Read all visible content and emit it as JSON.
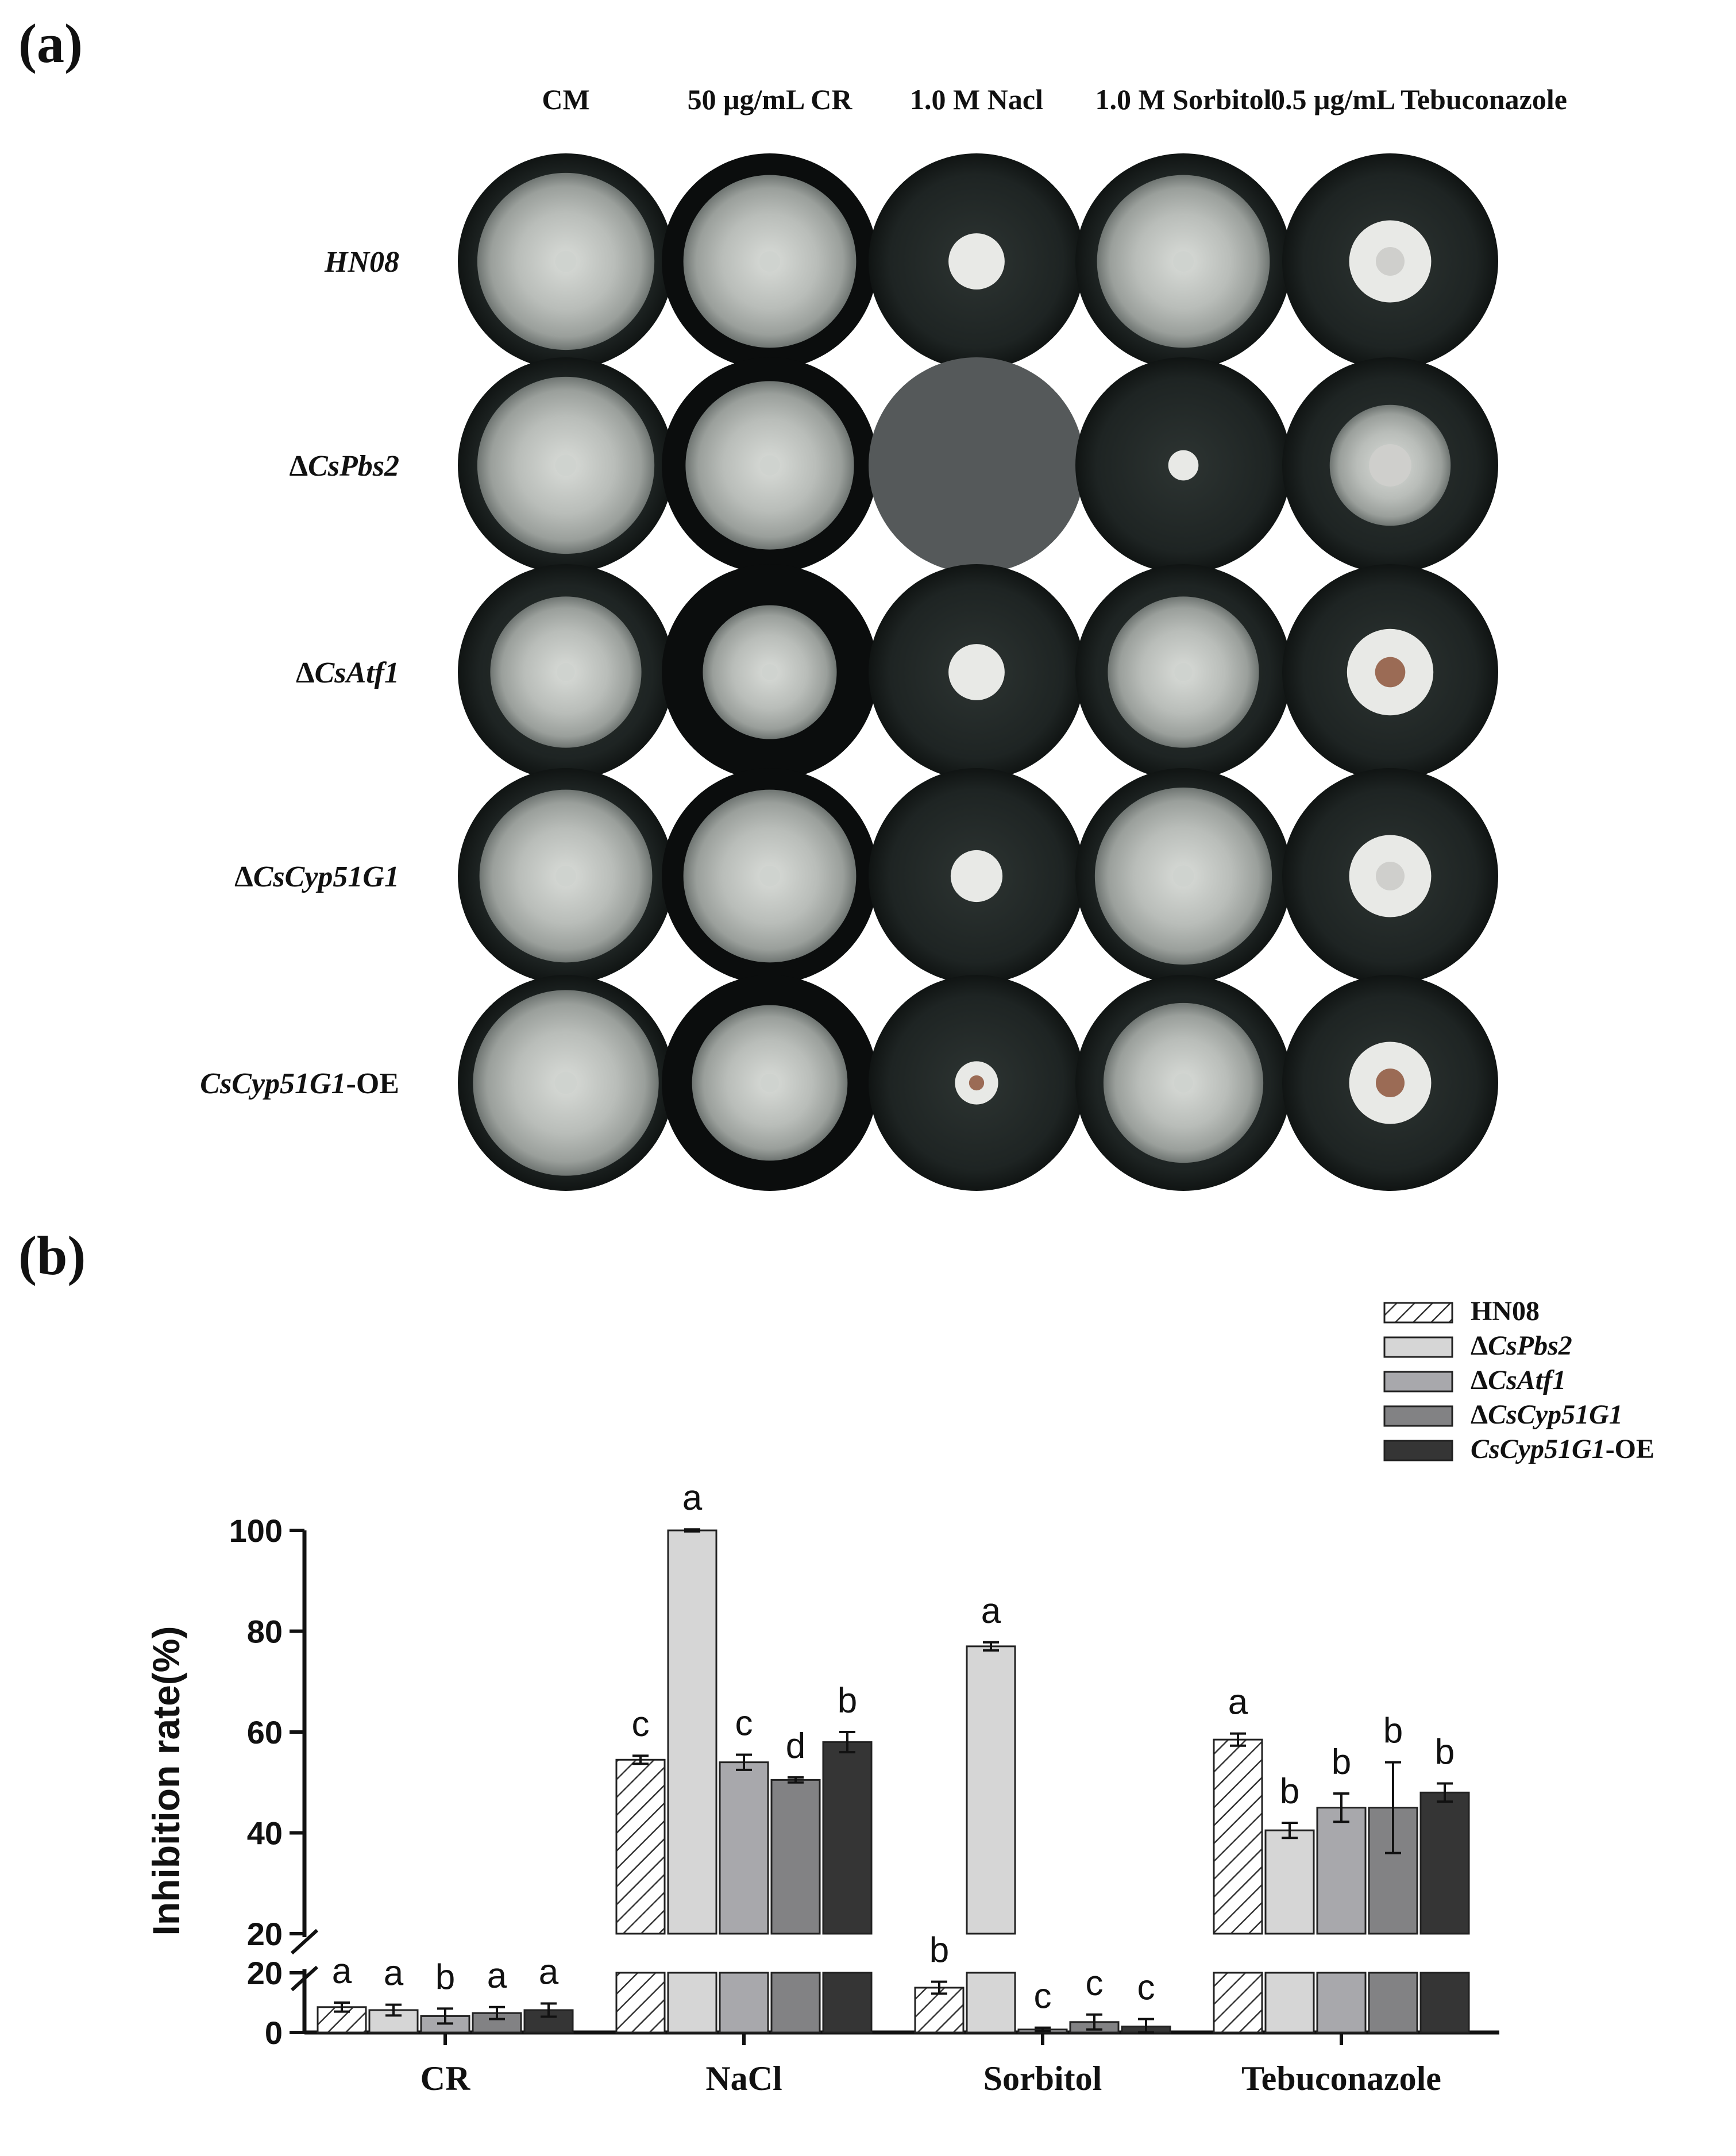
{
  "panel_a": {
    "label": "(a)",
    "columns": [
      "CM",
      "50 μg/mL CR",
      "1.0 M Nacl",
      "1.0 M Sorbitol",
      "0.5 μg/mL Tebuconazole"
    ],
    "rows": [
      {
        "prefix": "",
        "name": "HN08",
        "suffix": ""
      },
      {
        "prefix": "Δ",
        "name": "CsPbs2",
        "suffix": ""
      },
      {
        "prefix": "Δ",
        "name": "CsAtf1",
        "suffix": ""
      },
      {
        "prefix": "Δ",
        "name": "CsCyp51G1",
        "suffix": ""
      },
      {
        "prefix": "",
        "name": "CsCyp51G1",
        "suffix": "-OE"
      }
    ],
    "colony_fraction": [
      [
        0.82,
        0.8,
        0.26,
        0.8,
        0.38
      ],
      [
        0.82,
        0.78,
        0.0,
        0.14,
        0.56
      ],
      [
        0.7,
        0.62,
        0.26,
        0.7,
        0.4
      ],
      [
        0.8,
        0.8,
        0.24,
        0.82,
        0.38
      ],
      [
        0.86,
        0.72,
        0.2,
        0.74,
        0.38
      ]
    ]
  },
  "panel_b": {
    "label": "(b)"
  },
  "chart_data": {
    "type": "bar",
    "ylabel": "Inhibition rate(%)",
    "categories": [
      "CR",
      "NaCl",
      "Sorbitol",
      "Tebuconazole"
    ],
    "y_axis_break": {
      "lower_range": [
        0,
        20
      ],
      "upper_range": [
        20,
        100
      ]
    },
    "upper_ticks": [
      20,
      40,
      60,
      80,
      100
    ],
    "lower_ticks": [
      0,
      20
    ],
    "legend_position": "top-right",
    "series": [
      {
        "name": "HN08",
        "prefix": "",
        "italic": "",
        "suffix": "",
        "style": "hatched",
        "color": "#ffffff",
        "values": [
          8.5,
          54.5,
          15,
          58.5
        ],
        "errors": [
          1.5,
          0.8,
          2.0,
          1.2
        ],
        "letters": [
          "a",
          "c",
          "b",
          "a"
        ]
      },
      {
        "name": "ΔCsPbs2",
        "prefix": "Δ",
        "italic": "CsPbs2",
        "suffix": "",
        "style": "solid",
        "color": "#d6d6d6",
        "values": [
          7.5,
          100,
          77,
          40.5
        ],
        "errors": [
          1.8,
          0.2,
          0.8,
          1.5
        ],
        "letters": [
          "a",
          "a",
          "a",
          "b"
        ]
      },
      {
        "name": "ΔCsAtf1",
        "prefix": "Δ",
        "italic": "CsAtf1",
        "suffix": "",
        "style": "solid",
        "color": "#a8a8ac",
        "values": [
          5.5,
          54,
          1,
          45
        ],
        "errors": [
          2.5,
          1.5,
          0.6,
          2.8
        ],
        "letters": [
          "b",
          "c",
          "c",
          "b"
        ]
      },
      {
        "name": "ΔCsCyp51G1",
        "prefix": "Δ",
        "italic": "CsCyp51G1",
        "suffix": "",
        "style": "solid",
        "color": "#828284",
        "values": [
          6.5,
          50.5,
          3.5,
          45
        ],
        "errors": [
          2.0,
          0.5,
          2.5,
          9.0
        ],
        "letters": [
          "a",
          "d",
          "c",
          "b"
        ]
      },
      {
        "name": "CsCyp51G1-OE",
        "prefix": "",
        "italic": "CsCyp51G1",
        "suffix": "-OE",
        "style": "solid",
        "color": "#353535",
        "values": [
          7.5,
          58,
          2,
          48
        ],
        "errors": [
          2.2,
          2.0,
          2.5,
          1.8
        ],
        "letters": [
          "a",
          "b",
          "c",
          "b"
        ]
      }
    ]
  }
}
